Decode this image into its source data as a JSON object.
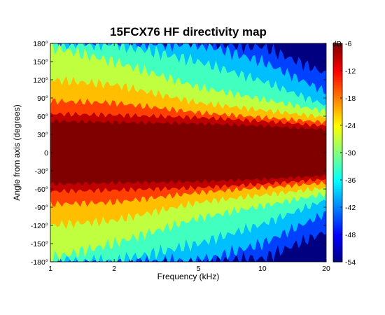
{
  "chart_data": {
    "type": "heatmap",
    "title": "15FCX76 HF directivity map",
    "xlabel": "Frequency (kHz)",
    "ylabel": "Angle from axis (degrees)",
    "x_scale": "log",
    "xlim": [
      1,
      20
    ],
    "ylim": [
      -180,
      180
    ],
    "x_ticks": [
      1,
      2,
      5,
      10,
      20
    ],
    "x_tick_labels": [
      "1",
      "2",
      "5",
      "10",
      "20"
    ],
    "y_ticks": [
      -180,
      -150,
      -120,
      -90,
      -60,
      -30,
      0,
      30,
      60,
      90,
      120,
      150,
      180
    ],
    "y_tick_labels": [
      "-180°",
      "-150°",
      "-120°",
      "-90°",
      "-60°",
      "-30°",
      "0",
      "30°",
      "60°",
      "90°",
      "120°",
      "150°",
      "180°"
    ],
    "colorbar": {
      "label": "dB",
      "range": [
        -54,
        -6
      ],
      "ticks": [
        -6,
        -12,
        -18,
        -24,
        -30,
        -36,
        -42,
        -48,
        -54
      ],
      "tick_labels": [
        "-6",
        "-12",
        "-18",
        "-24",
        "-30",
        "-36",
        "-42",
        "-48",
        "-54"
      ],
      "colormap": "jet"
    },
    "contour_levels_db": [
      -6,
      -12,
      -18,
      -24,
      -30,
      -36,
      -42,
      -48,
      -54
    ],
    "frequencies_khz": [
      1,
      2,
      5,
      10,
      20
    ],
    "angle_at_level_deg": {
      "-6": [
        52,
        50,
        48,
        44,
        38
      ],
      "-12": [
        64,
        62,
        58,
        52,
        44
      ],
      "-18": [
        85,
        82,
        66,
        58,
        50
      ],
      "-24": [
        120,
        112,
        82,
        70,
        58
      ],
      "-30": [
        175,
        150,
        108,
        88,
        68
      ],
      "-36": [
        180,
        180,
        150,
        118,
        78
      ],
      "-42": [
        180,
        180,
        180,
        150,
        100
      ],
      "-48": [
        180,
        180,
        180,
        175,
        130
      ]
    }
  }
}
